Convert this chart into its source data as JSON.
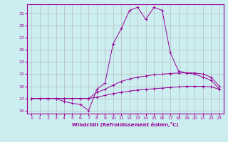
{
  "xlabel": "Windchill (Refroidissement éolien,°C)",
  "bg_color": "#cceef0",
  "line_color": "#990099",
  "grid_color": "#b0b0b0",
  "xlim": [
    -0.5,
    23.5
  ],
  "ylim": [
    14.5,
    32.5
  ],
  "yticks": [
    15,
    17,
    19,
    21,
    23,
    25,
    27,
    29,
    31
  ],
  "xticks": [
    0,
    1,
    2,
    3,
    4,
    5,
    6,
    7,
    8,
    9,
    10,
    11,
    12,
    13,
    14,
    15,
    16,
    17,
    18,
    19,
    20,
    21,
    22,
    23
  ],
  "series": [
    {
      "x": [
        0,
        1,
        2,
        3,
        4,
        5,
        6,
        7,
        8,
        9,
        10,
        11,
        12,
        13,
        14,
        15,
        16,
        17,
        18,
        19,
        20,
        21,
        22,
        23
      ],
      "y": [
        17,
        17,
        17,
        17,
        17,
        17,
        17,
        17,
        17.2,
        17.5,
        17.8,
        18.0,
        18.2,
        18.4,
        18.5,
        18.6,
        18.7,
        18.8,
        18.9,
        19.0,
        19.0,
        19.0,
        18.9,
        18.5
      ]
    },
    {
      "x": [
        0,
        1,
        2,
        3,
        4,
        5,
        6,
        7,
        8,
        9,
        10,
        11,
        12,
        13,
        14,
        15,
        16,
        17,
        18,
        19,
        20,
        21,
        22,
        23
      ],
      "y": [
        17,
        17,
        17,
        17,
        17,
        17,
        17,
        17,
        18.0,
        18.5,
        19.2,
        19.8,
        20.2,
        20.5,
        20.7,
        20.9,
        21.0,
        21.1,
        21.2,
        21.2,
        21.2,
        21.0,
        20.5,
        19.0
      ]
    },
    {
      "x": [
        0,
        1,
        2,
        3,
        4,
        5,
        6,
        7,
        8,
        9,
        10,
        11,
        12,
        13,
        14,
        15,
        16,
        17,
        18,
        19,
        20,
        21,
        22,
        23
      ],
      "y": [
        17,
        17,
        17,
        17,
        16.5,
        16.2,
        16.0,
        15.0,
        18.5,
        19.5,
        26.0,
        28.5,
        31.5,
        32.0,
        30.0,
        32.0,
        31.5,
        24.5,
        21.5,
        21.2,
        21.0,
        20.5,
        20.0,
        18.5
      ]
    }
  ]
}
